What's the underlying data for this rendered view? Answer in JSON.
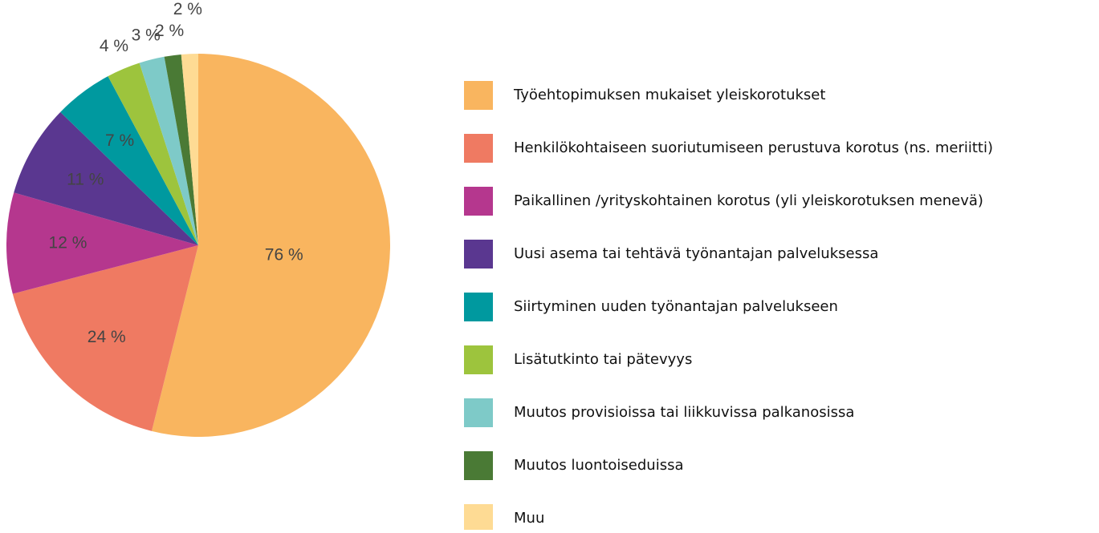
{
  "chart_data": {
    "type": "pie",
    "categories": [
      "Työehtopimuksen mukaiset yleiskorotukset",
      "Henkilökohtaiseen suoriutumiseen perustuva korotus (ns. meriitti)",
      "Paikallinen /yrityskohtainen korotus (yli yleiskorotuksen menevä)",
      "Uusi asema tai tehtävä työnantajan palveluksessa",
      "Siirtyminen uuden työnantajan palvelukseen",
      "Lisätutkinto tai pätevyys",
      "Muutos provisioissa tai liikkuvissa palkanosissa",
      "Muutos luontoiseduissa",
      "Muu"
    ],
    "values": [
      76,
      24,
      12,
      11,
      7,
      4,
      3,
      2,
      2
    ],
    "value_labels": [
      "76 %",
      "24 %",
      "12 %",
      "11 %",
      "7 %",
      "4 %",
      "3 %",
      "2 %",
      "2 %"
    ],
    "colors": [
      "#f9b55f",
      "#ef7a62",
      "#b5378e",
      "#5a3790",
      "#00999f",
      "#9dc43d",
      "#7ecac8",
      "#4a7a35",
      "#fedb94"
    ],
    "legend": "right"
  }
}
